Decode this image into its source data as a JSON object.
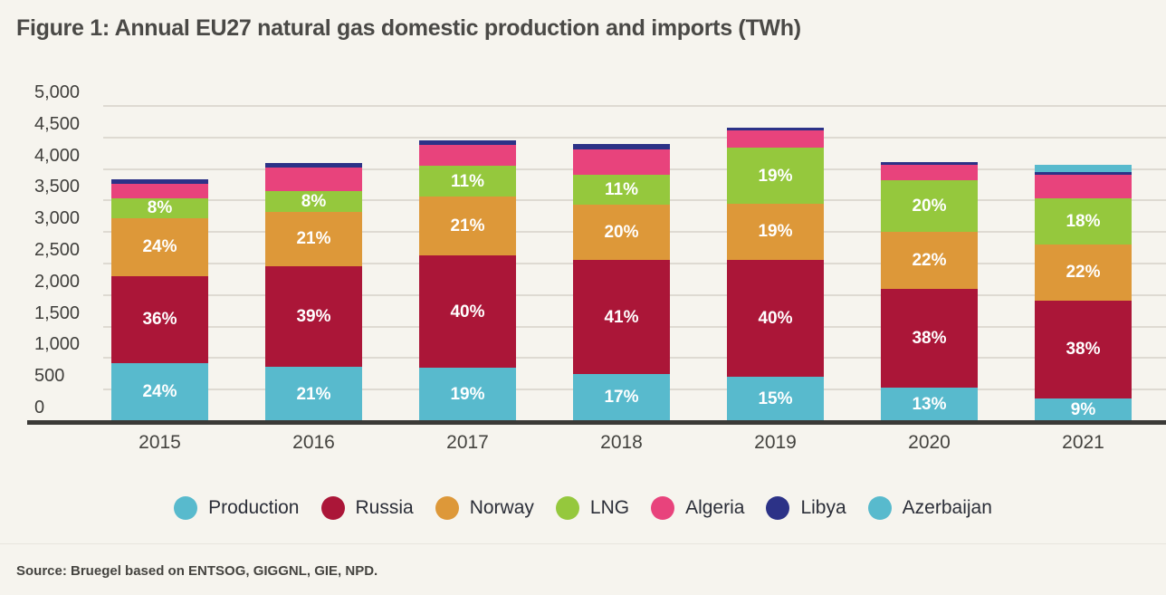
{
  "title": "Figure 1: Annual EU27 natural gas domestic production and imports (TWh)",
  "source": "Source: Bruegel based on ENTSOG, GIGGNL, GIE, NPD.",
  "colors": {
    "background": "#f6f4ee",
    "gridline": "#dedad2",
    "axis_line": "#3b3a37",
    "title_text": "#4a4946",
    "tick_text": "#403f3c",
    "legend_text": "#2b2e38",
    "bar_label_text": "#ffffff"
  },
  "chart_data": {
    "type": "bar",
    "stacked": true,
    "title": "Figure 1: Annual EU27 natural gas domestic production and imports (TWh)",
    "unit": "TWh",
    "categories": [
      "2015",
      "2016",
      "2017",
      "2018",
      "2019",
      "2020",
      "2021"
    ],
    "totals_twh": [
      3840,
      4100,
      4450,
      4400,
      4660,
      4110,
      4070
    ],
    "ylim": [
      0,
      5000
    ],
    "y_tick_step": 500,
    "y_ticks": [
      "5,000",
      "4,500",
      "4,000",
      "3,500",
      "3,000",
      "2,500",
      "2,000",
      "1,500",
      "1,000",
      "500",
      "0"
    ],
    "grid": true,
    "legend_position": "bottom",
    "series": [
      {
        "name": "Production",
        "color": "#58bacd",
        "shares_pct": [
          24,
          21,
          19,
          17,
          15,
          13,
          9
        ],
        "segment_labels": [
          "24%",
          "21%",
          "19%",
          "17%",
          "15%",
          "13%",
          "9%"
        ]
      },
      {
        "name": "Russia",
        "color": "#ab1638",
        "shares_pct": [
          36,
          39,
          40,
          41,
          40,
          38,
          38
        ],
        "segment_labels": [
          "36%",
          "39%",
          "40%",
          "41%",
          "40%",
          "38%",
          "38%"
        ]
      },
      {
        "name": "Norway",
        "color": "#dd9839",
        "shares_pct": [
          24,
          21,
          21,
          20,
          19,
          22,
          22
        ],
        "segment_labels": [
          "24%",
          "21%",
          "21%",
          "20%",
          "19%",
          "22%",
          "22%"
        ]
      },
      {
        "name": "LNG",
        "color": "#95c83d",
        "shares_pct": [
          8,
          8,
          11,
          11,
          19,
          20,
          18
        ],
        "segment_labels": [
          "8%",
          "8%",
          "11%",
          "11%",
          "19%",
          "20%",
          "18%"
        ]
      },
      {
        "name": "Algeria",
        "color": "#e8437c",
        "shares_pct": [
          6,
          9,
          7.5,
          9,
          6,
          6,
          9
        ],
        "segment_labels": null
      },
      {
        "name": "Libya",
        "color": "#2c3287",
        "shares_pct": [
          2,
          2,
          1.5,
          2,
          1,
          1,
          1
        ],
        "segment_labels": null
      },
      {
        "name": "Azerbaijan",
        "color": "#58bacd",
        "shares_pct": [
          0,
          0,
          0,
          0,
          0,
          0,
          3
        ],
        "segment_labels": null
      }
    ]
  }
}
